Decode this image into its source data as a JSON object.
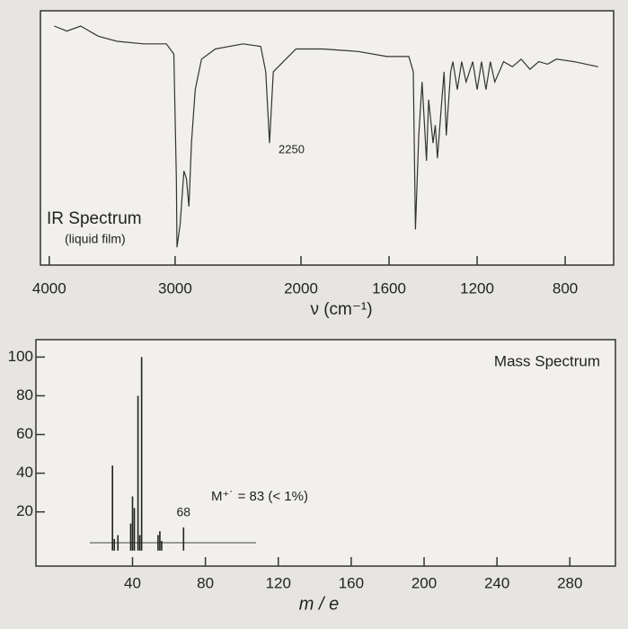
{
  "chart_data": [
    {
      "type": "line",
      "title": "IR Spectrum",
      "subtitle": "(liquid film)",
      "annotation": "2250",
      "x_label": "ν (cm⁻¹)",
      "xscale_break": 2000,
      "xlim": [
        4070,
        580
      ],
      "xticks": [
        4000,
        3000,
        2000,
        1600,
        1200,
        800
      ],
      "ylim": [
        0,
        100
      ],
      "color": "#333333",
      "x": [
        3960,
        3860,
        3750,
        3610,
        3460,
        3250,
        3070,
        3010,
        2990,
        2985,
        2960,
        2930,
        2910,
        2890,
        2870,
        2840,
        2790,
        2680,
        2460,
        2320,
        2280,
        2250,
        2220,
        2040,
        1900,
        1740,
        1610,
        1510,
        1490,
        1480,
        1465,
        1450,
        1430,
        1420,
        1400,
        1390,
        1380,
        1360,
        1350,
        1340,
        1320,
        1310,
        1290,
        1270,
        1250,
        1220,
        1200,
        1180,
        1160,
        1140,
        1120,
        1080,
        1040,
        1000,
        960,
        920,
        880,
        840,
        760,
        650
      ],
      "values": [
        94,
        92,
        94,
        90,
        88,
        87,
        87,
        83,
        34,
        7,
        16,
        37,
        34,
        23,
        48,
        69,
        81,
        85,
        87,
        86,
        76,
        48,
        76,
        85,
        85,
        84,
        82,
        82,
        76,
        14,
        51,
        72,
        41,
        65,
        48,
        55,
        42,
        65,
        76,
        51,
        76,
        80,
        69,
        80,
        72,
        80,
        69,
        80,
        69,
        80,
        72,
        80,
        78,
        81,
        77,
        80,
        79,
        81,
        80,
        78
      ]
    },
    {
      "type": "bar",
      "title": "Mass Spectrum",
      "annotation": "M⁺˙ = 83  (< 1%)",
      "x_label": "m / e",
      "xlim": [
        -13,
        305
      ],
      "xticks": [
        40,
        80,
        120,
        160,
        200,
        240,
        280
      ],
      "ylim": [
        -8,
        109
      ],
      "yticks": [
        20,
        40,
        60,
        80,
        100
      ],
      "color": "#222222",
      "x": [
        29,
        30,
        32,
        39,
        40,
        41,
        43,
        44,
        45,
        54,
        55,
        56,
        68
      ],
      "values": [
        44,
        6,
        8,
        14,
        28,
        22,
        80,
        8,
        100,
        8,
        10,
        5,
        12
      ],
      "value_labels": [
        null,
        null,
        null,
        null,
        null,
        null,
        null,
        null,
        null,
        null,
        null,
        null,
        "68"
      ]
    }
  ]
}
